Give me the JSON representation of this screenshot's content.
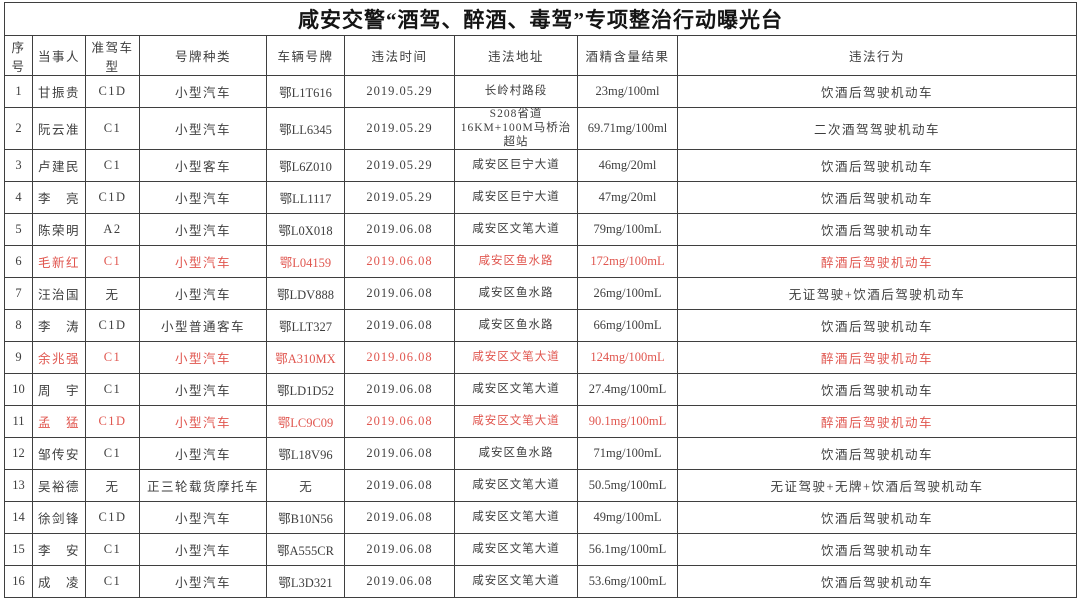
{
  "title": "咸安交警“酒驾、醉酒、毒驾”专项整治行动曝光台",
  "colors": {
    "highlight_red": "#e0564f",
    "body_text": "#3e3e3e",
    "grid_line": "#3f3f3f"
  },
  "table": {
    "columns": [
      {
        "key": "no",
        "label": "序号"
      },
      {
        "key": "name",
        "label": "当事人"
      },
      {
        "key": "license_class",
        "label": "准驾车型"
      },
      {
        "key": "plate_type",
        "label": "号牌种类"
      },
      {
        "key": "plate",
        "label": "车辆号牌"
      },
      {
        "key": "date",
        "label": "违法时间"
      },
      {
        "key": "address",
        "label": "违法地址"
      },
      {
        "key": "alcohol",
        "label": "酒精含量结果"
      },
      {
        "key": "behavior",
        "label": "违法行为"
      }
    ],
    "rows": [
      {
        "no": "1",
        "name": "甘振贵",
        "license_class": "C1D",
        "plate_type": "小型汽车",
        "plate": "鄂L1T616",
        "date": "2019.05.29",
        "address": "长岭村路段",
        "alcohol": "23mg/100ml",
        "behavior": "饮酒后驾驶机动车",
        "highlight": false
      },
      {
        "no": "2",
        "name": "阮云准",
        "license_class": "C1",
        "plate_type": "小型汽车",
        "plate": "鄂LL6345",
        "date": "2019.05.29",
        "address": "S208省道16KM+100M马桥治超站",
        "alcohol": "69.71mg/100ml",
        "behavior": "二次酒驾驾驶机动车",
        "highlight": false
      },
      {
        "no": "3",
        "name": "卢建民",
        "license_class": "C1",
        "plate_type": "小型客车",
        "plate": "鄂L6Z010",
        "date": "2019.05.29",
        "address": "咸安区巨宁大道",
        "alcohol": "46mg/20ml",
        "behavior": "饮酒后驾驶机动车",
        "highlight": false
      },
      {
        "no": "4",
        "name": "李　亮",
        "license_class": "C1D",
        "plate_type": "小型汽车",
        "plate": "鄂LL1117",
        "date": "2019.05.29",
        "address": "咸安区巨宁大道",
        "alcohol": "47mg/20ml",
        "behavior": "饮酒后驾驶机动车",
        "highlight": false
      },
      {
        "no": "5",
        "name": "陈荣明",
        "license_class": "A2",
        "plate_type": "小型汽车",
        "plate": "鄂L0X018",
        "date": "2019.06.08",
        "address": "咸安区文笔大道",
        "alcohol": "79mg/100mL",
        "behavior": "饮酒后驾驶机动车",
        "highlight": false
      },
      {
        "no": "6",
        "name": "毛新红",
        "license_class": "C1",
        "plate_type": "小型汽车",
        "plate": "鄂L04159",
        "date": "2019.06.08",
        "address": "咸安区鱼水路",
        "alcohol": "172mg/100mL",
        "behavior": "醉酒后驾驶机动车",
        "highlight": true
      },
      {
        "no": "7",
        "name": "汪治国",
        "license_class": "无",
        "plate_type": "小型汽车",
        "plate": "鄂LDV888",
        "date": "2019.06.08",
        "address": "咸安区鱼水路",
        "alcohol": "26mg/100mL",
        "behavior": "无证驾驶+饮酒后驾驶机动车",
        "highlight": false
      },
      {
        "no": "8",
        "name": "李　涛",
        "license_class": "C1D",
        "plate_type": "小型普通客车",
        "plate": "鄂LLT327",
        "date": "2019.06.08",
        "address": "咸安区鱼水路",
        "alcohol": "66mg/100mL",
        "behavior": "饮酒后驾驶机动车",
        "highlight": false
      },
      {
        "no": "9",
        "name": "余兆强",
        "license_class": "C1",
        "plate_type": "小型汽车",
        "plate": "鄂A310MX",
        "date": "2019.06.08",
        "address": "咸安区文笔大道",
        "alcohol": "124mg/100mL",
        "behavior": "醉酒后驾驶机动车",
        "highlight": true
      },
      {
        "no": "10",
        "name": "周　宇",
        "license_class": "C1",
        "plate_type": "小型汽车",
        "plate": "鄂LD1D52",
        "date": "2019.06.08",
        "address": "咸安区文笔大道",
        "alcohol": "27.4mg/100mL",
        "behavior": "饮酒后驾驶机动车",
        "highlight": false
      },
      {
        "no": "11",
        "name": "孟　猛",
        "license_class": "C1D",
        "plate_type": "小型汽车",
        "plate": "鄂LC9C09",
        "date": "2019.06.08",
        "address": "咸安区文笔大道",
        "alcohol": "90.1mg/100mL",
        "behavior": "醉酒后驾驶机动车",
        "highlight": true
      },
      {
        "no": "12",
        "name": "邹传安",
        "license_class": "C1",
        "plate_type": "小型汽车",
        "plate": "鄂L18V96",
        "date": "2019.06.08",
        "address": "咸安区鱼水路",
        "alcohol": "71mg/100mL",
        "behavior": "饮酒后驾驶机动车",
        "highlight": false
      },
      {
        "no": "13",
        "name": "吴裕德",
        "license_class": "无",
        "plate_type": "正三轮载货摩托车",
        "plate": "无",
        "date": "2019.06.08",
        "address": "咸安区文笔大道",
        "alcohol": "50.5mg/100mL",
        "behavior": "无证驾驶+无牌+饮酒后驾驶机动车",
        "highlight": false
      },
      {
        "no": "14",
        "name": "徐剑锋",
        "license_class": "C1D",
        "plate_type": "小型汽车",
        "plate": "鄂B10N56",
        "date": "2019.06.08",
        "address": "咸安区文笔大道",
        "alcohol": "49mg/100mL",
        "behavior": "饮酒后驾驶机动车",
        "highlight": false
      },
      {
        "no": "15",
        "name": "李　安",
        "license_class": "C1",
        "plate_type": "小型汽车",
        "plate": "鄂A555CR",
        "date": "2019.06.08",
        "address": "咸安区文笔大道",
        "alcohol": "56.1mg/100mL",
        "behavior": "饮酒后驾驶机动车",
        "highlight": false
      },
      {
        "no": "16",
        "name": "成　凌",
        "license_class": "C1",
        "plate_type": "小型汽车",
        "plate": "鄂L3D321",
        "date": "2019.06.08",
        "address": "咸安区文笔大道",
        "alcohol": "53.6mg/100mL",
        "behavior": "饮酒后驾驶机动车",
        "highlight": false
      }
    ]
  }
}
